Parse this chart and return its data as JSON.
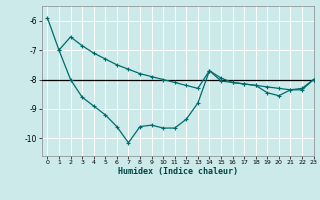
{
  "xlabel": "Humidex (Indice chaleur)",
  "background_color": "#cceaea",
  "grid_color": "#ffffff",
  "line_color": "#006b6b",
  "hline_color": "#000000",
  "xlim": [
    -0.5,
    23
  ],
  "ylim": [
    -10.6,
    -5.5
  ],
  "yticks": [
    -10,
    -9,
    -8,
    -7,
    -6
  ],
  "xticks": [
    0,
    1,
    2,
    3,
    4,
    5,
    6,
    7,
    8,
    9,
    10,
    11,
    12,
    13,
    14,
    15,
    16,
    17,
    18,
    19,
    20,
    21,
    22,
    23
  ],
  "line1_x": [
    0,
    1,
    2,
    3,
    4,
    5,
    6,
    7,
    8,
    9,
    10,
    11,
    12,
    13,
    14,
    15,
    16,
    17,
    18,
    19,
    20,
    21,
    22,
    23
  ],
  "line1_y": [
    -5.9,
    -7.0,
    -6.55,
    -6.85,
    -7.1,
    -7.3,
    -7.5,
    -7.65,
    -7.8,
    -7.9,
    -8.0,
    -8.1,
    -8.2,
    -8.3,
    -7.7,
    -7.95,
    -8.1,
    -8.15,
    -8.2,
    -8.25,
    -8.3,
    -8.35,
    -8.35,
    -8.0
  ],
  "line2_x": [
    1,
    2,
    3,
    4,
    5,
    6,
    7,
    8,
    9,
    10,
    11,
    12,
    13,
    14,
    15,
    16,
    17,
    18,
    19,
    20,
    21,
    22,
    23
  ],
  "line2_y": [
    -7.0,
    -8.0,
    -8.6,
    -8.9,
    -9.2,
    -9.6,
    -10.15,
    -9.6,
    -9.55,
    -9.65,
    -9.65,
    -9.35,
    -8.8,
    -7.7,
    -8.05,
    -8.1,
    -8.15,
    -8.2,
    -8.45,
    -8.55,
    -8.35,
    -8.3,
    -8.0
  ],
  "hline_y": -8.0
}
